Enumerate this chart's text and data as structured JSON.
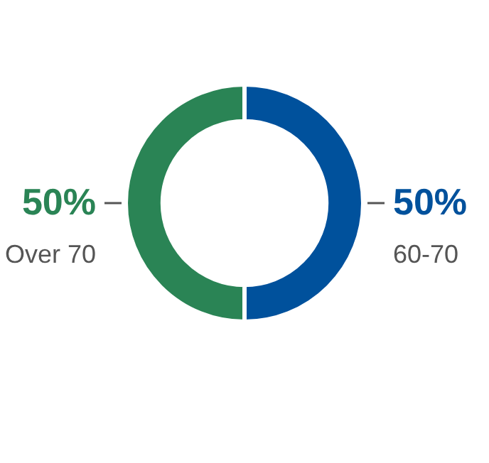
{
  "chart_data": {
    "type": "donut",
    "categories": [
      "60-70",
      "Over 70"
    ],
    "values": [
      50,
      50
    ],
    "colors": [
      "#00519c",
      "#2a8455"
    ],
    "value_labels": [
      "50%",
      "50%"
    ],
    "legend": false
  }
}
